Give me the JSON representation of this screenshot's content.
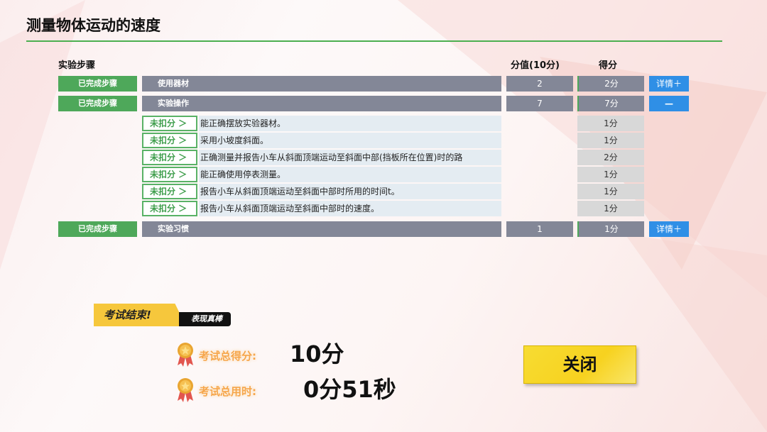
{
  "title": "测量物体运动的速度",
  "table": {
    "headers": {
      "step": "实验步骤",
      "value": "分值(10分)",
      "score": "得分"
    },
    "steps": [
      {
        "status": "已完成步骤",
        "name": "使用器材",
        "value": "2",
        "score": "2分",
        "button": "详情＋"
      },
      {
        "status": "已完成步骤",
        "name": "实验操作",
        "value": "7",
        "score": "7分",
        "button": "—",
        "items": [
          {
            "tag": "未扣分 ＞",
            "text": "能正确摆放实验器材。",
            "score": "1分"
          },
          {
            "tag": "未扣分 ＞",
            "text": "采用小坡度斜面。",
            "score": "1分"
          },
          {
            "tag": "未扣分 ＞",
            "text": "正确测量并报告小车从斜面顶端运动至斜面中部(挡板所在位置)时的路",
            "score": "2分"
          },
          {
            "tag": "未扣分 ＞",
            "text": "能正确使用停表测量。",
            "score": "1分"
          },
          {
            "tag": "未扣分 ＞",
            "text": "报告小车从斜面顶端运动至斜面中部时所用的时间t。",
            "score": "1分"
          },
          {
            "tag": "未扣分 ＞",
            "text": "报告小车从斜面顶端运动至斜面中部时的速度。",
            "score": "1分"
          }
        ]
      },
      {
        "status": "已完成步骤",
        "name": "实验习惯",
        "value": "1",
        "score": "1分",
        "button": "详情＋"
      }
    ]
  },
  "result": {
    "banner": "考试结束!",
    "banner_sub": "表现真棒",
    "total_score_label": "考试总得分:",
    "total_score": "10分",
    "total_time_label": "考试总用时:",
    "total_time": "0分51秒"
  },
  "close_button": "关闭",
  "colors": {
    "accent_green": "#4ea85a",
    "row_gray": "#838797",
    "button_blue": "#2f8fe6",
    "close_yellow": "#f7d21f"
  }
}
